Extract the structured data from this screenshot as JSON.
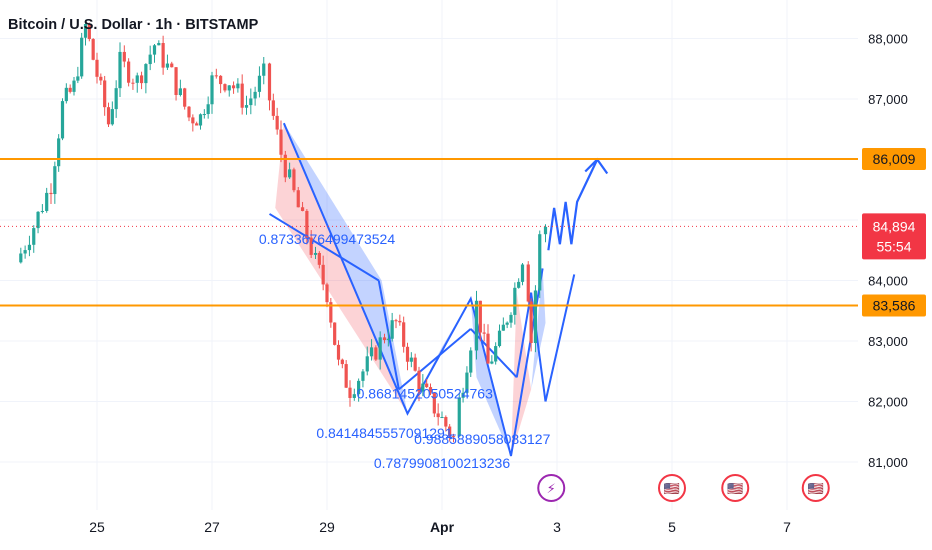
{
  "header": {
    "title": "Bitcoin / U.S. Dollar · 1h · BITSTAMP"
  },
  "colors": {
    "up": "#26a69a",
    "down": "#ef5350",
    "level": "#ff9800",
    "pattern": "#2962ff",
    "current": "#f23645",
    "grid": "#f0f3fa",
    "axis_text": "#131722"
  },
  "chart_data": {
    "type": "candlestick",
    "title": "Bitcoin / U.S. Dollar · 1h · BITSTAMP",
    "x_ticks": [
      "25",
      "27",
      "29",
      "Apr",
      "3",
      "5",
      "7"
    ],
    "y_ticks": [
      "81,000",
      "82,000",
      "83,000",
      "84,000",
      "85,000",
      "86,000",
      "87,000",
      "88,000"
    ],
    "ylim": [
      80500,
      88500
    ],
    "price_path": [
      [
        23.6,
        84300
      ],
      [
        23.9,
        84900
      ],
      [
        24.2,
        85600
      ],
      [
        24.4,
        86900
      ],
      [
        24.6,
        87200
      ],
      [
        24.8,
        88200
      ],
      [
        25.0,
        87400
      ],
      [
        25.2,
        86600
      ],
      [
        25.4,
        87600
      ],
      [
        25.7,
        87300
      ],
      [
        26.0,
        87900
      ],
      [
        26.3,
        87400
      ],
      [
        26.6,
        86700
      ],
      [
        26.8,
        86700
      ],
      [
        27.0,
        87300
      ],
      [
        27.3,
        87300
      ],
      [
        27.6,
        86900
      ],
      [
        27.9,
        87400
      ],
      [
        28.0,
        87000
      ],
      [
        28.2,
        86100
      ],
      [
        28.5,
        85200
      ],
      [
        28.8,
        84300
      ],
      [
        29.0,
        83800
      ],
      [
        29.2,
        82600
      ],
      [
        29.4,
        82200
      ],
      [
        29.7,
        82600
      ],
      [
        30.0,
        83100
      ],
      [
        30.2,
        83300
      ],
      [
        30.4,
        82800
      ],
      [
        30.6,
        82300
      ],
      [
        30.8,
        82000
      ],
      [
        31.0,
        81700
      ],
      [
        31.2,
        81400
      ],
      [
        31.3,
        82000
      ],
      [
        31.5,
        83000
      ],
      [
        31.6,
        83600
      ],
      [
        31.8,
        82600
      ],
      [
        32.0,
        83000
      ],
      [
        32.2,
        83600
      ],
      [
        32.4,
        84400
      ],
      [
        32.5,
        83800
      ],
      [
        32.55,
        83000
      ],
      [
        32.7,
        84700
      ],
      [
        32.8,
        84900
      ]
    ],
    "current_price": "84,894",
    "countdown": "55:54",
    "levels": [
      {
        "value": 86009,
        "label": "86,009"
      },
      {
        "value": 83586,
        "label": "83,586"
      }
    ],
    "current_value": 84894,
    "annotations": [
      {
        "text": "0.8733676499473524",
        "x": 29.0,
        "y": 84600
      },
      {
        "text": "0.8681452050524763",
        "x": 30.7,
        "y": 82050
      },
      {
        "text": "0.8414845557091291",
        "x": 30.0,
        "y": 81400
      },
      {
        "text": "0.9885889058083127",
        "x": 31.7,
        "y": 81300
      },
      {
        "text": "0.7879908100213236",
        "x": 31.0,
        "y": 80900
      }
    ],
    "pattern": {
      "zigzag": [
        [
          28.25,
          86600
        ],
        [
          30.4,
          81800
        ],
        [
          31.5,
          83700
        ],
        [
          32.2,
          81100
        ],
        [
          32.75,
          84200
        ]
      ],
      "channel": [
        [
          28.0,
          85100
        ],
        [
          29.9,
          84000
        ],
        [
          30.25,
          82200
        ],
        [
          31.5,
          83200
        ],
        [
          32.3,
          82400
        ],
        [
          32.55,
          83800
        ],
        [
          32.8,
          82000
        ],
        [
          33.3,
          84100
        ]
      ],
      "arrow": [
        [
          32.85,
          84500
        ],
        [
          32.95,
          85200
        ],
        [
          33.05,
          84600
        ],
        [
          33.15,
          85300
        ],
        [
          33.25,
          84600
        ],
        [
          33.35,
          85300
        ],
        [
          33.7,
          86000
        ]
      ]
    }
  },
  "event_icons": [
    {
      "name": "flash-event-icon",
      "x": 32.9,
      "glyph": "⚡"
    },
    {
      "name": "us-flag-event-icon",
      "x": 35.0,
      "glyph": "🇺🇸"
    },
    {
      "name": "us-flag-event-icon",
      "x": 36.1,
      "glyph": "🇺🇸"
    },
    {
      "name": "us-flag-event-icon",
      "x": 37.5,
      "glyph": "🇺🇸"
    }
  ]
}
